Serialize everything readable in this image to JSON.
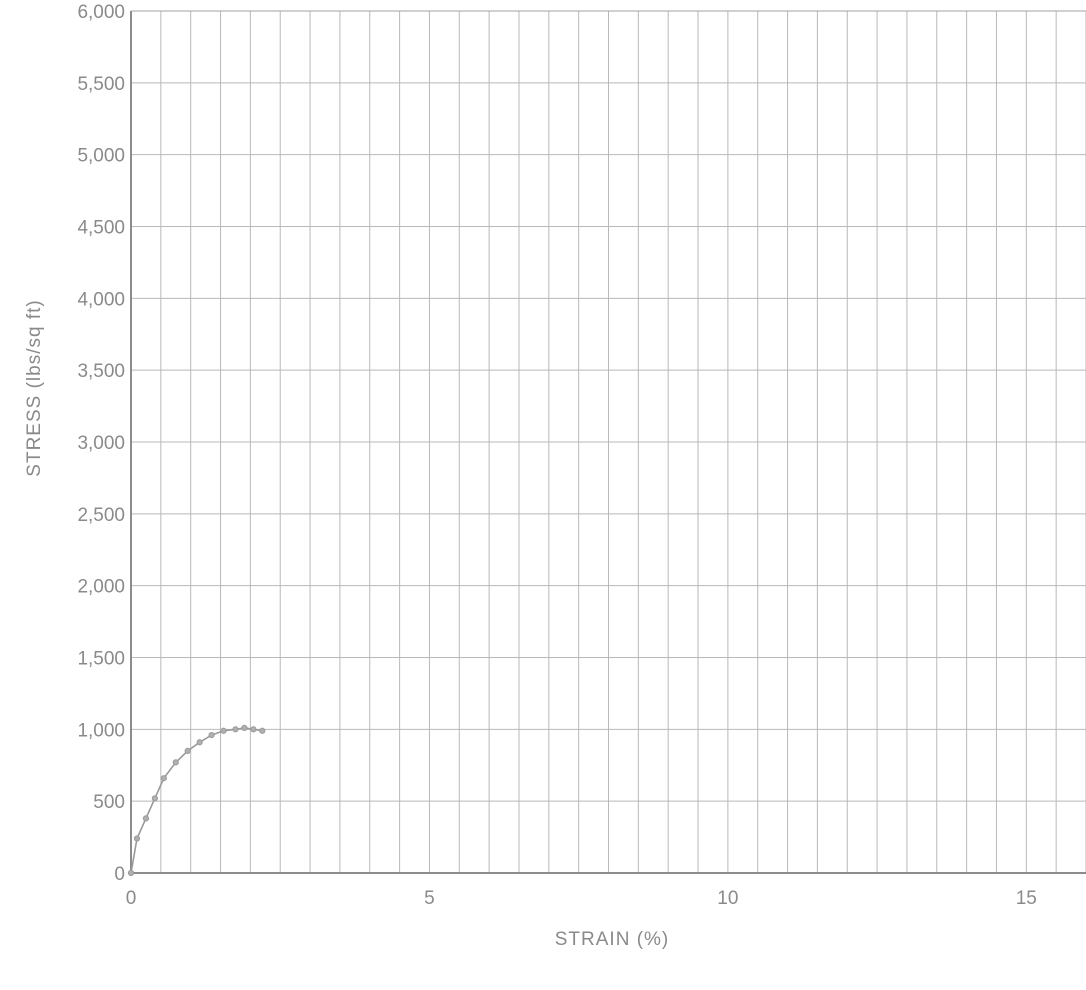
{
  "chart_data": {
    "type": "line",
    "title": "",
    "xlabel": "STRAIN  (%)",
    "ylabel": "STRESS  (lbs/sq ft)",
    "xlim": [
      0,
      16
    ],
    "ylim": [
      0,
      6000
    ],
    "x_ticks": [
      0,
      5,
      10,
      15
    ],
    "x_tick_labels": [
      "0",
      "5",
      "10",
      "15"
    ],
    "y_ticks": [
      0,
      500,
      1000,
      1500,
      2000,
      2500,
      3000,
      3500,
      4000,
      4500,
      5000,
      5500,
      6000
    ],
    "y_tick_labels": [
      "0",
      "500",
      "1,000",
      "1,500",
      "2,000",
      "2,500",
      "3,000",
      "3,500",
      "4,000",
      "4,500",
      "5,000",
      "5,500",
      "6,000"
    ],
    "x_minor_step": 0.5,
    "grid": true,
    "legend": "none",
    "series": [
      {
        "color": "#9a9a9a",
        "markers": true,
        "x": [
          0,
          0.1,
          0.25,
          0.4,
          0.55,
          0.75,
          0.95,
          1.15,
          1.35,
          1.55,
          1.75,
          1.9,
          2.05,
          2.2
        ],
        "y": [
          0,
          240,
          380,
          520,
          660,
          770,
          850,
          910,
          960,
          990,
          1000,
          1010,
          1000,
          990
        ]
      }
    ]
  }
}
